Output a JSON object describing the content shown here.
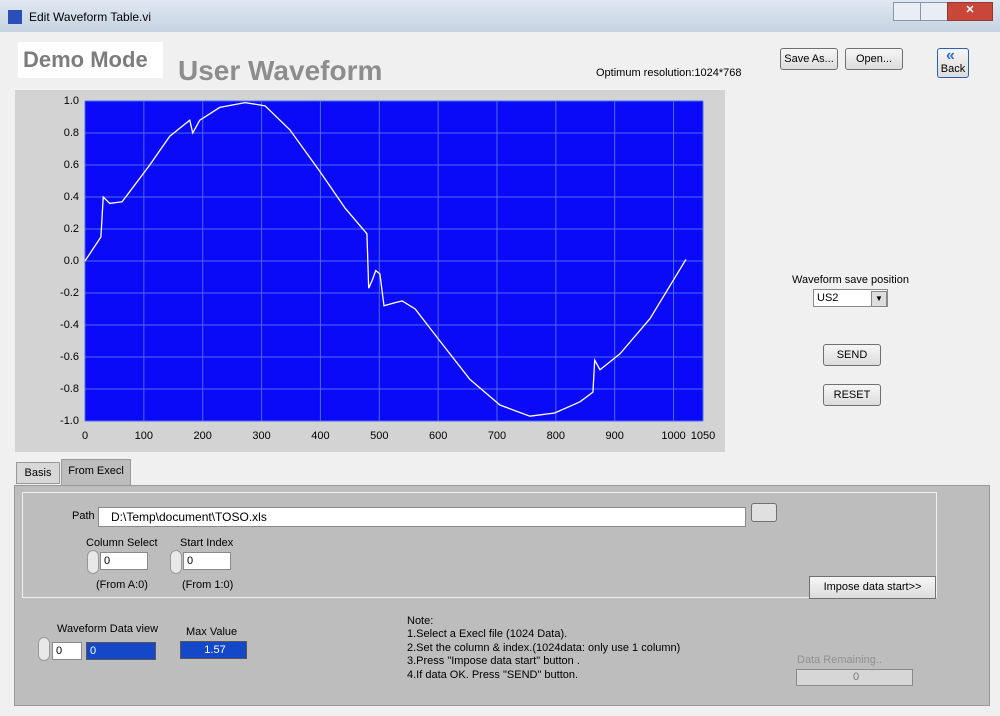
{
  "window": {
    "title": "Edit Waveform Table.vi"
  },
  "header": {
    "mode": "Demo Mode",
    "title": "User Waveform",
    "resolution": "Optimum resolution:1024*768"
  },
  "toolbar": {
    "save_as": "Save As...",
    "open": "Open...",
    "back": "Back"
  },
  "chart_data": {
    "type": "line",
    "x": [
      0,
      27,
      31,
      42,
      63,
      110,
      144,
      178,
      183,
      195,
      229,
      272,
      306,
      348,
      399,
      442,
      479,
      482,
      488,
      494,
      501,
      508,
      527,
      539,
      561,
      603,
      654,
      705,
      756,
      798,
      841,
      863,
      866,
      875,
      909,
      960,
      1021
    ],
    "series": [
      {
        "color": "#ffffff",
        "values": [
          0,
          0.15,
          0.4,
          0.36,
          0.37,
          0.6,
          0.78,
          0.88,
          0.8,
          0.88,
          0.96,
          0.99,
          0.97,
          0.82,
          0.56,
          0.33,
          0.17,
          -0.17,
          -0.12,
          -0.06,
          -0.08,
          -0.28,
          -0.26,
          -0.25,
          -0.3,
          -0.5,
          -0.74,
          -0.9,
          -0.97,
          -0.95,
          -0.88,
          -0.82,
          -0.62,
          -0.68,
          -0.58,
          -0.36,
          0.01
        ]
      }
    ],
    "xlim": [
      0,
      1050
    ],
    "xticks": [
      0,
      100,
      200,
      300,
      400,
      500,
      600,
      700,
      800,
      900,
      1000,
      1050
    ],
    "ylim": [
      -1,
      1
    ],
    "yticks": [
      {
        "value": -1,
        "label": "-1.0"
      },
      -0.8,
      -0.6,
      -0.4,
      -0.2,
      {
        "value": 0,
        "label": "0.0"
      },
      0.2,
      0.4,
      0.6,
      0.8,
      {
        "value": 1,
        "label": "1.0"
      }
    ],
    "grid": true,
    "background": "#0a0af8",
    "grid_color": "#4a6cf0"
  },
  "save_position": {
    "label": "Waveform save position",
    "value": "US2"
  },
  "buttons": {
    "send": "SEND",
    "reset": "RESET"
  },
  "tabs": [
    "Basis",
    "From Execl"
  ],
  "excel": {
    "path_label": "Path",
    "path": "D:\\Temp\\document\\TOSO.xls",
    "column_label": "Column Select",
    "column_value": "0",
    "column_hint": "(From A:0)",
    "index_label": "Start Index",
    "index_value": "0",
    "index_hint": "(From 1:0)",
    "impose": "Impose data start>>"
  },
  "view": {
    "label": "Waveform Data view",
    "index": "0",
    "value": "0",
    "max_label": "Max Value",
    "max_value": "1.57"
  },
  "note": {
    "title": "Note:",
    "lines": [
      "1.Select a Execl file (1024 Data).",
      "2.Set the column & index.(1024data: only use 1 column)",
      "3.Press \"Impose data start\" button .",
      "4.If data OK. Press \"SEND\" button."
    ]
  },
  "remaining": {
    "label": "Data Remaining..",
    "value": "0"
  }
}
